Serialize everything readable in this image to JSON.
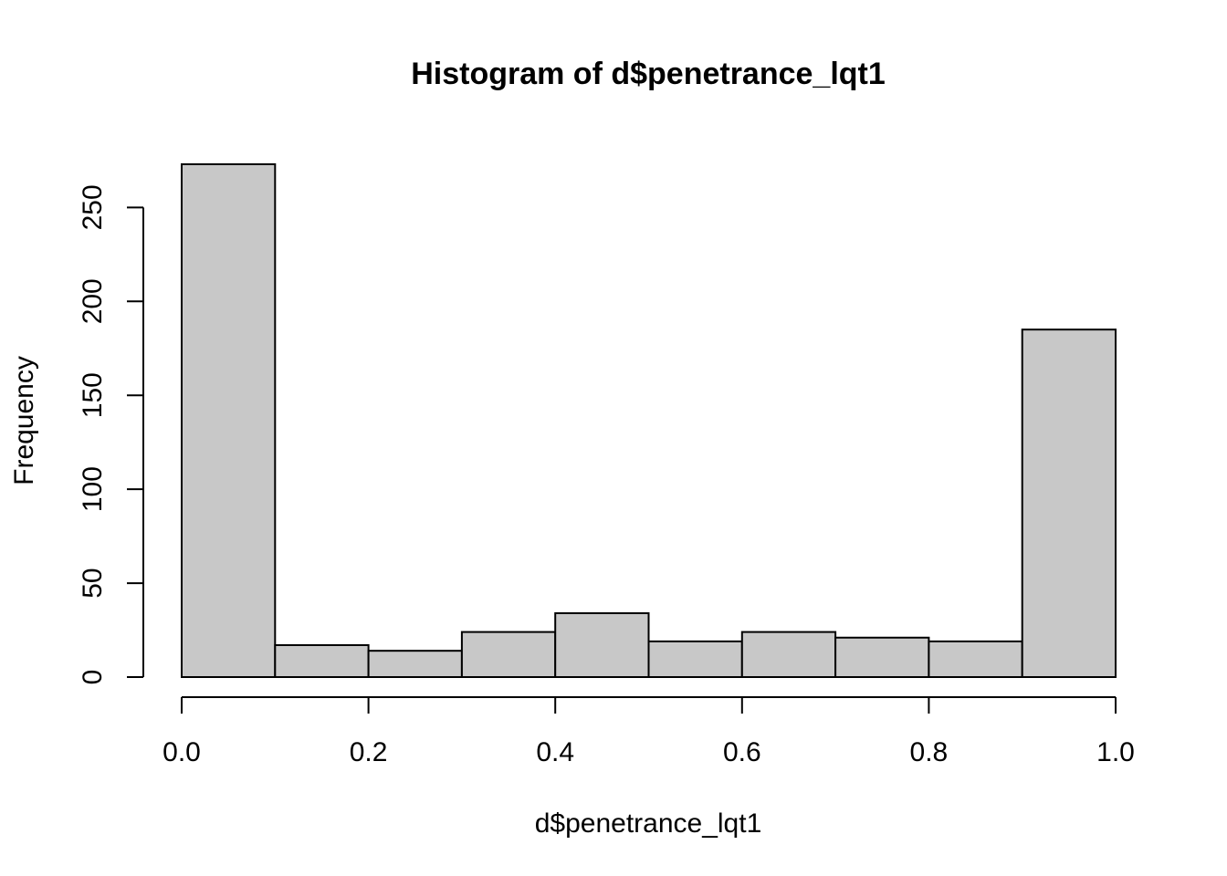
{
  "chart_data": {
    "type": "bar",
    "title": "Histogram of d$penetrance_lqt1",
    "xlabel": "d$penetrance_lqt1",
    "ylabel": "Frequency",
    "bins": [
      {
        "start": 0.0,
        "end": 0.1,
        "count": 273
      },
      {
        "start": 0.1,
        "end": 0.2,
        "count": 17
      },
      {
        "start": 0.2,
        "end": 0.3,
        "count": 14
      },
      {
        "start": 0.3,
        "end": 0.4,
        "count": 24
      },
      {
        "start": 0.4,
        "end": 0.5,
        "count": 34
      },
      {
        "start": 0.5,
        "end": 0.6,
        "count": 19
      },
      {
        "start": 0.6,
        "end": 0.7,
        "count": 24
      },
      {
        "start": 0.7,
        "end": 0.8,
        "count": 21
      },
      {
        "start": 0.8,
        "end": 0.9,
        "count": 19
      },
      {
        "start": 0.9,
        "end": 1.0,
        "count": 185
      }
    ],
    "xlim": [
      0.0,
      1.0
    ],
    "ylim": [
      0,
      273
    ],
    "x_ticks": [
      {
        "value": 0.0,
        "label": "0.0"
      },
      {
        "value": 0.2,
        "label": "0.2"
      },
      {
        "value": 0.4,
        "label": "0.4"
      },
      {
        "value": 0.6,
        "label": "0.6"
      },
      {
        "value": 0.8,
        "label": "0.8"
      },
      {
        "value": 1.0,
        "label": "1.0"
      }
    ],
    "y_ticks": [
      {
        "value": 0,
        "label": "0"
      },
      {
        "value": 50,
        "label": "50"
      },
      {
        "value": 100,
        "label": "100"
      },
      {
        "value": 150,
        "label": "150"
      },
      {
        "value": 200,
        "label": "200"
      },
      {
        "value": 250,
        "label": "250"
      }
    ],
    "bar_fill": "#c8c8c8",
    "bar_stroke": "#000000",
    "grid": false
  }
}
